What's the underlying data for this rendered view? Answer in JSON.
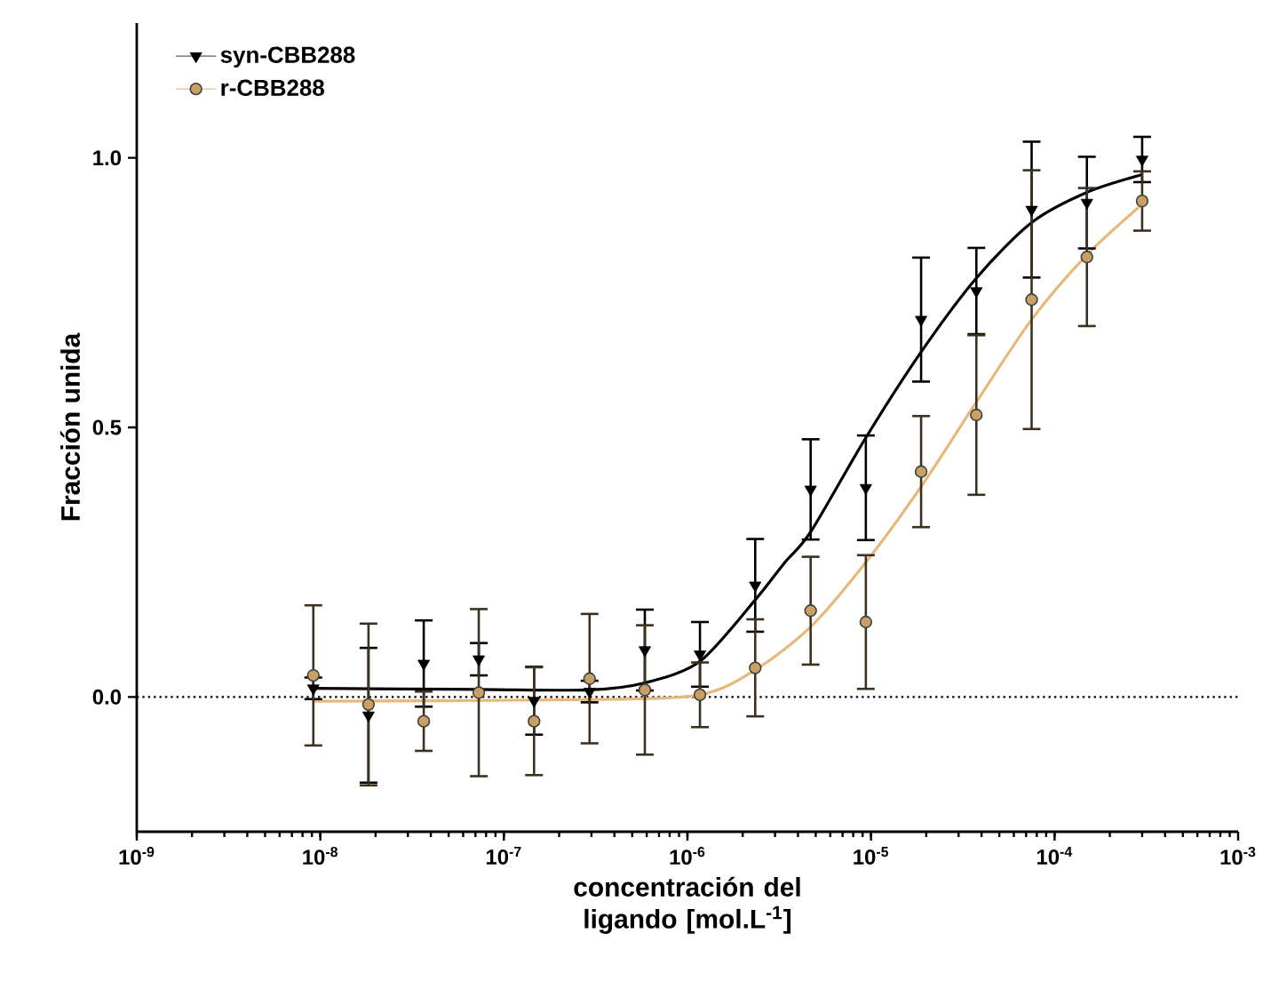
{
  "chart_data": {
    "type": "scatter",
    "xlabel": "concentración del ligando [mol.L$^{-1}$]",
    "ylabel": "Fracción unida",
    "log": "x",
    "xlim": [
      1e-09,
      0.001
    ],
    "ylim": [
      -0.25,
      1.25
    ],
    "xticks": [
      {
        "value": 1e-09,
        "label": "10$^{-9}$"
      },
      {
        "value": 1e-08,
        "label": "10$^{-8}$"
      },
      {
        "value": 1e-07,
        "label": "10$^{-7}$"
      },
      {
        "value": 1e-06,
        "label": "10$^{-6}$"
      },
      {
        "value": 1e-05,
        "label": "10$^{-5}$"
      },
      {
        "value": 0.0001,
        "label": "10$^{-4}$"
      },
      {
        "value": 0.001,
        "label": "10$^{-3}$"
      }
    ],
    "yticks": [
      {
        "value": 0,
        "label": "0.0"
      },
      {
        "value": 0.5,
        "label": "0.5"
      },
      {
        "value": 1,
        "label": "1.0"
      }
    ],
    "grid": false,
    "legend": "top left",
    "ref_lines": [
      {
        "axis": "y",
        "value": 0,
        "color": "#000000",
        "line_style": "dotted"
      }
    ],
    "series": [
      {
        "name": "syn-CBB288",
        "color": "#000000",
        "marker": "triangle",
        "x": [
          9.16e-09,
          1.83e-08,
          3.66e-08,
          7.3e-08,
          1.46e-07,
          2.93e-07,
          5.86e-07,
          1.17e-06,
          2.34e-06,
          4.69e-06,
          9.375e-06,
          1.875e-05,
          3.75e-05,
          7.5e-05,
          0.00015,
          0.0003
        ],
        "values": [
          0.016,
          -0.034,
          0.062,
          0.07,
          -0.007,
          0.01,
          0.087,
          0.079,
          0.207,
          0.385,
          0.388,
          0.7,
          0.753,
          0.904,
          0.917,
          0.997
        ],
        "errors": [
          0.02,
          0.125,
          0.08,
          0.03,
          0.063,
          0.02,
          0.075,
          0.06,
          0.086,
          0.093,
          0.097,
          0.115,
          0.08,
          0.126,
          0.085,
          0.042
        ]
      },
      {
        "name": "r-CBB288",
        "color": "#c9a063",
        "marker": "circle",
        "x": [
          9.16e-09,
          1.83e-08,
          3.66e-08,
          7.3e-08,
          1.46e-07,
          2.93e-07,
          5.86e-07,
          1.17e-06,
          2.34e-06,
          4.69e-06,
          9.375e-06,
          1.875e-05,
          3.75e-05,
          7.5e-05,
          0.00015,
          0.0003
        ],
        "values": [
          0.04,
          -0.014,
          -0.045,
          0.008,
          -0.045,
          0.034,
          0.013,
          0.004,
          0.054,
          0.16,
          0.139,
          0.418,
          0.523,
          0.737,
          0.816,
          0.92
        ],
        "errors": [
          0.13,
          0.15,
          0.055,
          0.155,
          0.1,
          0.12,
          0.12,
          0.06,
          0.09,
          0.1,
          0.124,
          0.103,
          0.148,
          0.24,
          0.128,
          0.055
        ]
      },
      {
        "type": "line",
        "color": "#000000",
        "marker": "none",
        "x": [
          9.16e-09,
          7.3e-08,
          2.93e-07,
          5.86e-07,
          1.17e-06,
          2.34e-06,
          3.4e-06,
          4.69e-06,
          9.375e-06,
          1.875e-05,
          3.75e-05,
          7.5e-05,
          0.00015,
          0.0003
        ],
        "values": [
          0.016,
          0.014,
          0.013,
          0.026,
          0.066,
          0.18,
          0.25,
          0.306,
          0.481,
          0.64,
          0.777,
          0.88,
          0.936,
          0.969
        ]
      },
      {
        "type": "line",
        "color": "#e6b87a",
        "marker": "none",
        "x": [
          9.16e-09,
          2.93e-07,
          1.17e-06,
          2.34e-06,
          4.69e-06,
          9.375e-06,
          1.875e-05,
          3.75e-05,
          7.5e-05,
          0.00015,
          0.0003
        ],
        "values": [
          -0.008,
          -0.005,
          0.004,
          0.05,
          0.13,
          0.25,
          0.39,
          0.547,
          0.7,
          0.82,
          0.914
        ]
      }
    ]
  }
}
